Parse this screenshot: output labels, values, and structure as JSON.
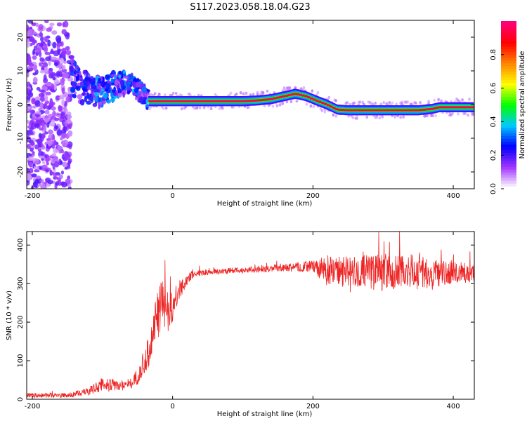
{
  "title": "S117.2023.058.18.04.G23",
  "colors": {
    "snr_line": "#ee2222",
    "axis": "#000000",
    "colormap": [
      "#ffffff",
      "#a033ff",
      "#0000ff",
      "#00c8ff",
      "#00ff00",
      "#ffff00",
      "#ff8800",
      "#ff0000",
      "#ff0077"
    ]
  },
  "chart_data": [
    {
      "type": "heatmap",
      "title": "S117.2023.058.18.04.G23",
      "xlabel": "Height of straight line (km)",
      "ylabel": "Frequency (Hz)",
      "xlim": [
        -208,
        430
      ],
      "ylim": [
        -25,
        25
      ],
      "x_ticks": [
        -200,
        0,
        200,
        400
      ],
      "y_ticks": [
        -20,
        -10,
        0,
        10,
        20
      ],
      "colorbar": {
        "label": "Normalized spectral amplitude",
        "range": [
          0,
          1
        ],
        "ticks": [
          0.0,
          0.2,
          0.4,
          0.6,
          0.8
        ]
      },
      "peak_track": {
        "x": [
          -35,
          0,
          50,
          100,
          120,
          140,
          160,
          175,
          190,
          205,
          220,
          235,
          250,
          300,
          350,
          370,
          380,
          400,
          430
        ],
        "y": [
          1,
          1,
          1,
          1,
          1.2,
          1.6,
          2.5,
          3.2,
          2.5,
          1.2,
          0,
          -1.5,
          -1.7,
          -1.7,
          -1.7,
          -1.3,
          -0.8,
          -0.8,
          -0.8
        ]
      },
      "noise_region_x": [
        -208,
        -145
      ]
    },
    {
      "type": "line",
      "xlabel": "Height of straight line (km)",
      "ylabel": "SNR (10 * v/v)",
      "xlim": [
        -208,
        430
      ],
      "ylim": [
        0,
        435
      ],
      "x_ticks": [
        -200,
        0,
        200,
        400
      ],
      "y_ticks": [
        0,
        100,
        200,
        300,
        400
      ],
      "series": [
        {
          "x": [
            -208,
            -150,
            -120,
            -100,
            -80,
            -60,
            -45,
            -35,
            -25,
            -15,
            -8,
            0,
            10,
            20,
            30,
            50,
            100,
            150,
            200,
            220,
            250,
            300,
            350,
            400,
            430
          ],
          "y": [
            10,
            10,
            20,
            40,
            35,
            40,
            70,
            120,
            200,
            250,
            230,
            240,
            280,
            310,
            325,
            330,
            335,
            340,
            345,
            335,
            330,
            330,
            330,
            330,
            330
          ],
          "spread": [
            6,
            6,
            10,
            20,
            15,
            15,
            25,
            40,
            60,
            70,
            60,
            40,
            30,
            15,
            10,
            8,
            8,
            10,
            15,
            40,
            40,
            50,
            45,
            35,
            25
          ]
        }
      ]
    }
  ]
}
